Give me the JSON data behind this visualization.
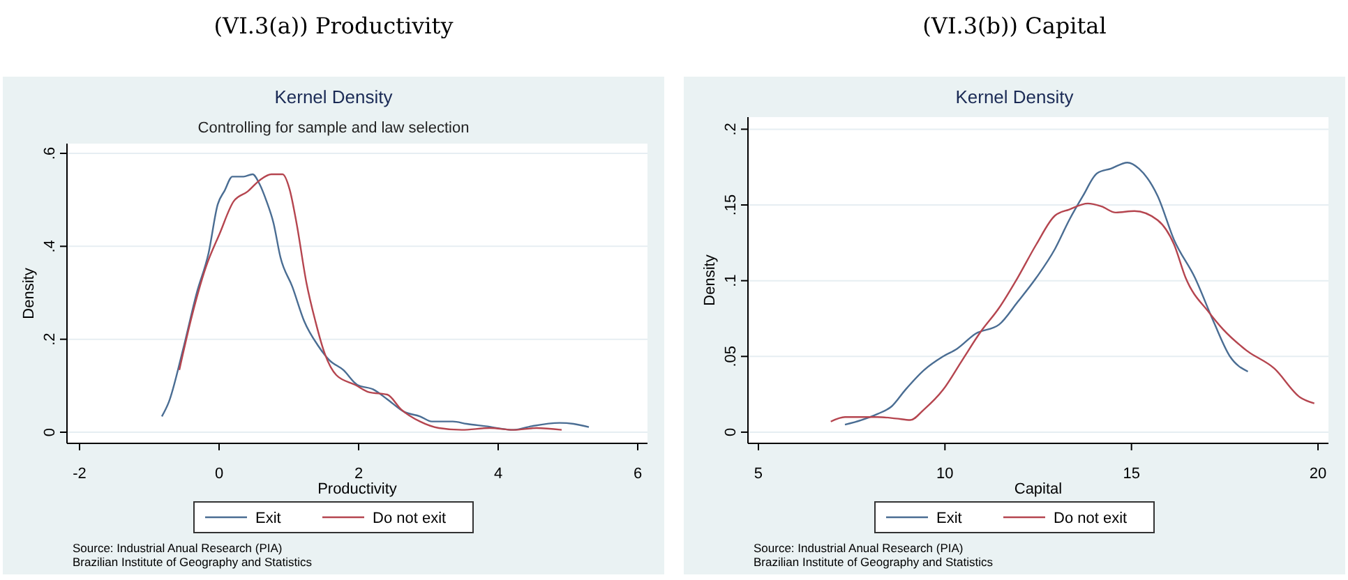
{
  "chart_data": [
    {
      "type": "line",
      "title": "Kernel Density",
      "subtitle": "Controlling for sample and law selection",
      "xlabel": "Productivity",
      "ylabel": "Density",
      "xlim": [
        -2.18,
        6.14
      ],
      "ylim": [
        -0.024,
        0.621
      ],
      "xticks": [
        -2,
        0,
        2,
        4,
        6
      ],
      "yticks": [
        {
          "value": 0,
          "label": "0"
        },
        {
          "value": 0.2,
          "label": ".2"
        },
        {
          "value": 0.4,
          "label": ".4"
        },
        {
          "value": 0.6,
          "label": ".6"
        }
      ],
      "grid": "y",
      "legend": "bottom",
      "line_style": "solid",
      "annotations": [
        "(VI.3(a)) Productivity",
        "Source: Industrial Anual Research (PIA)",
        "Brazilian Institute of Geography and Statistics"
      ],
      "series": [
        {
          "name": "Exit",
          "color": "#4a6d93",
          "x": [
            -0.82,
            -0.72,
            -0.52,
            -0.32,
            -0.15,
            -0.02,
            0.08,
            0.19,
            0.35,
            0.48,
            0.58,
            0.68,
            0.78,
            0.88,
            1.05,
            1.22,
            1.42,
            1.58,
            1.78,
            1.98,
            2.21,
            2.41,
            2.65,
            2.88,
            3.05,
            3.35,
            3.55,
            3.82,
            4.22,
            4.48,
            4.88,
            5.08,
            5.3
          ],
          "values": [
            0.034,
            0.065,
            0.176,
            0.3,
            0.386,
            0.49,
            0.52,
            0.55,
            0.55,
            0.555,
            0.534,
            0.497,
            0.45,
            0.376,
            0.313,
            0.239,
            0.186,
            0.155,
            0.134,
            0.102,
            0.092,
            0.071,
            0.044,
            0.034,
            0.023,
            0.023,
            0.018,
            0.013,
            0.005,
            0.013,
            0.02,
            0.018,
            0.011
          ]
        },
        {
          "name": "Do not exit",
          "color": "#b5454f",
          "x": [
            -0.57,
            -0.39,
            -0.19,
            0.01,
            0.21,
            0.41,
            0.58,
            0.75,
            0.91,
            1.01,
            1.11,
            1.25,
            1.38,
            1.51,
            1.68,
            1.95,
            2.15,
            2.41,
            2.61,
            2.88,
            3.15,
            3.48,
            3.88,
            4.22,
            4.55,
            4.91
          ],
          "values": [
            0.134,
            0.25,
            0.355,
            0.428,
            0.497,
            0.518,
            0.542,
            0.555,
            0.555,
            0.523,
            0.45,
            0.323,
            0.239,
            0.171,
            0.123,
            0.102,
            0.086,
            0.081,
            0.049,
            0.023,
            0.009,
            0.005,
            0.009,
            0.005,
            0.009,
            0.005
          ]
        }
      ]
    },
    {
      "type": "line",
      "title": "Kernel Density",
      "xlabel": "Capital",
      "ylabel": "Density",
      "xlim": [
        4.72,
        20.28
      ],
      "ylim": [
        -0.0074,
        0.208
      ],
      "xticks": [
        5,
        10,
        15,
        20
      ],
      "yticks": [
        {
          "value": 0,
          "label": "0"
        },
        {
          "value": 0.05,
          "label": ".05"
        },
        {
          "value": 0.1,
          "label": ".1"
        },
        {
          "value": 0.15,
          "label": ".15"
        },
        {
          "value": 0.2,
          "label": ".2"
        }
      ],
      "grid": "y",
      "legend": "bottom",
      "line_style": "solid",
      "annotations": [
        "(VI.3(b)) Capital",
        "Source: Industrial Anual Research (PIA)",
        "Brazilian Institute of Geography and Statistics"
      ],
      "series": [
        {
          "name": "Exit",
          "color": "#4a6d93",
          "x": [
            7.32,
            7.76,
            8.19,
            8.57,
            8.94,
            9.44,
            9.95,
            10.32,
            10.82,
            11.45,
            11.95,
            12.45,
            12.95,
            13.33,
            13.7,
            14.08,
            14.45,
            14.89,
            15.2,
            15.7,
            16.14,
            16.7,
            17.2,
            17.64,
            18.12
          ],
          "values": [
            0.005,
            0.008,
            0.012,
            0.017,
            0.028,
            0.041,
            0.05,
            0.055,
            0.065,
            0.071,
            0.086,
            0.102,
            0.121,
            0.14,
            0.156,
            0.171,
            0.174,
            0.178,
            0.174,
            0.156,
            0.127,
            0.102,
            0.073,
            0.05,
            0.04
          ]
        },
        {
          "name": "Do not exit",
          "color": "#b5454f",
          "x": [
            6.94,
            7.32,
            7.69,
            8.19,
            8.69,
            9.07,
            9.44,
            9.95,
            10.45,
            10.95,
            11.45,
            11.95,
            12.45,
            12.95,
            13.33,
            13.83,
            14.2,
            14.58,
            15.08,
            15.7,
            16.14,
            16.45,
            17.08,
            17.45,
            18.08,
            18.83,
            19.52,
            19.9
          ],
          "values": [
            0.007,
            0.01,
            0.01,
            0.01,
            0.009,
            0.008,
            0.015,
            0.028,
            0.047,
            0.066,
            0.082,
            0.102,
            0.124,
            0.143,
            0.147,
            0.151,
            0.149,
            0.145,
            0.146,
            0.14,
            0.124,
            0.102,
            0.079,
            0.068,
            0.054,
            0.042,
            0.023,
            0.019
          ]
        }
      ]
    }
  ]
}
